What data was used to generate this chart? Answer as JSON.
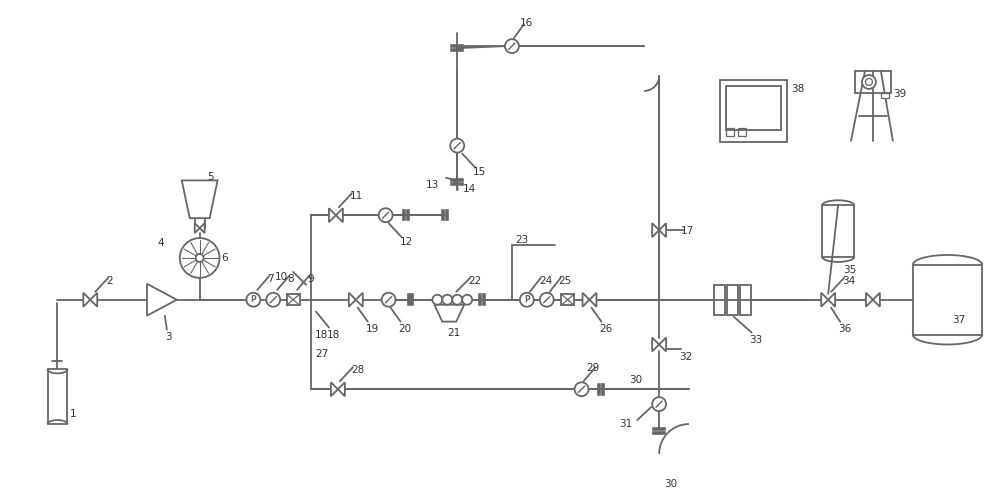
{
  "line_color": "#666666",
  "line_width": 1.3,
  "label_fontsize": 7.5,
  "fig_width": 10.0,
  "fig_height": 5.03
}
